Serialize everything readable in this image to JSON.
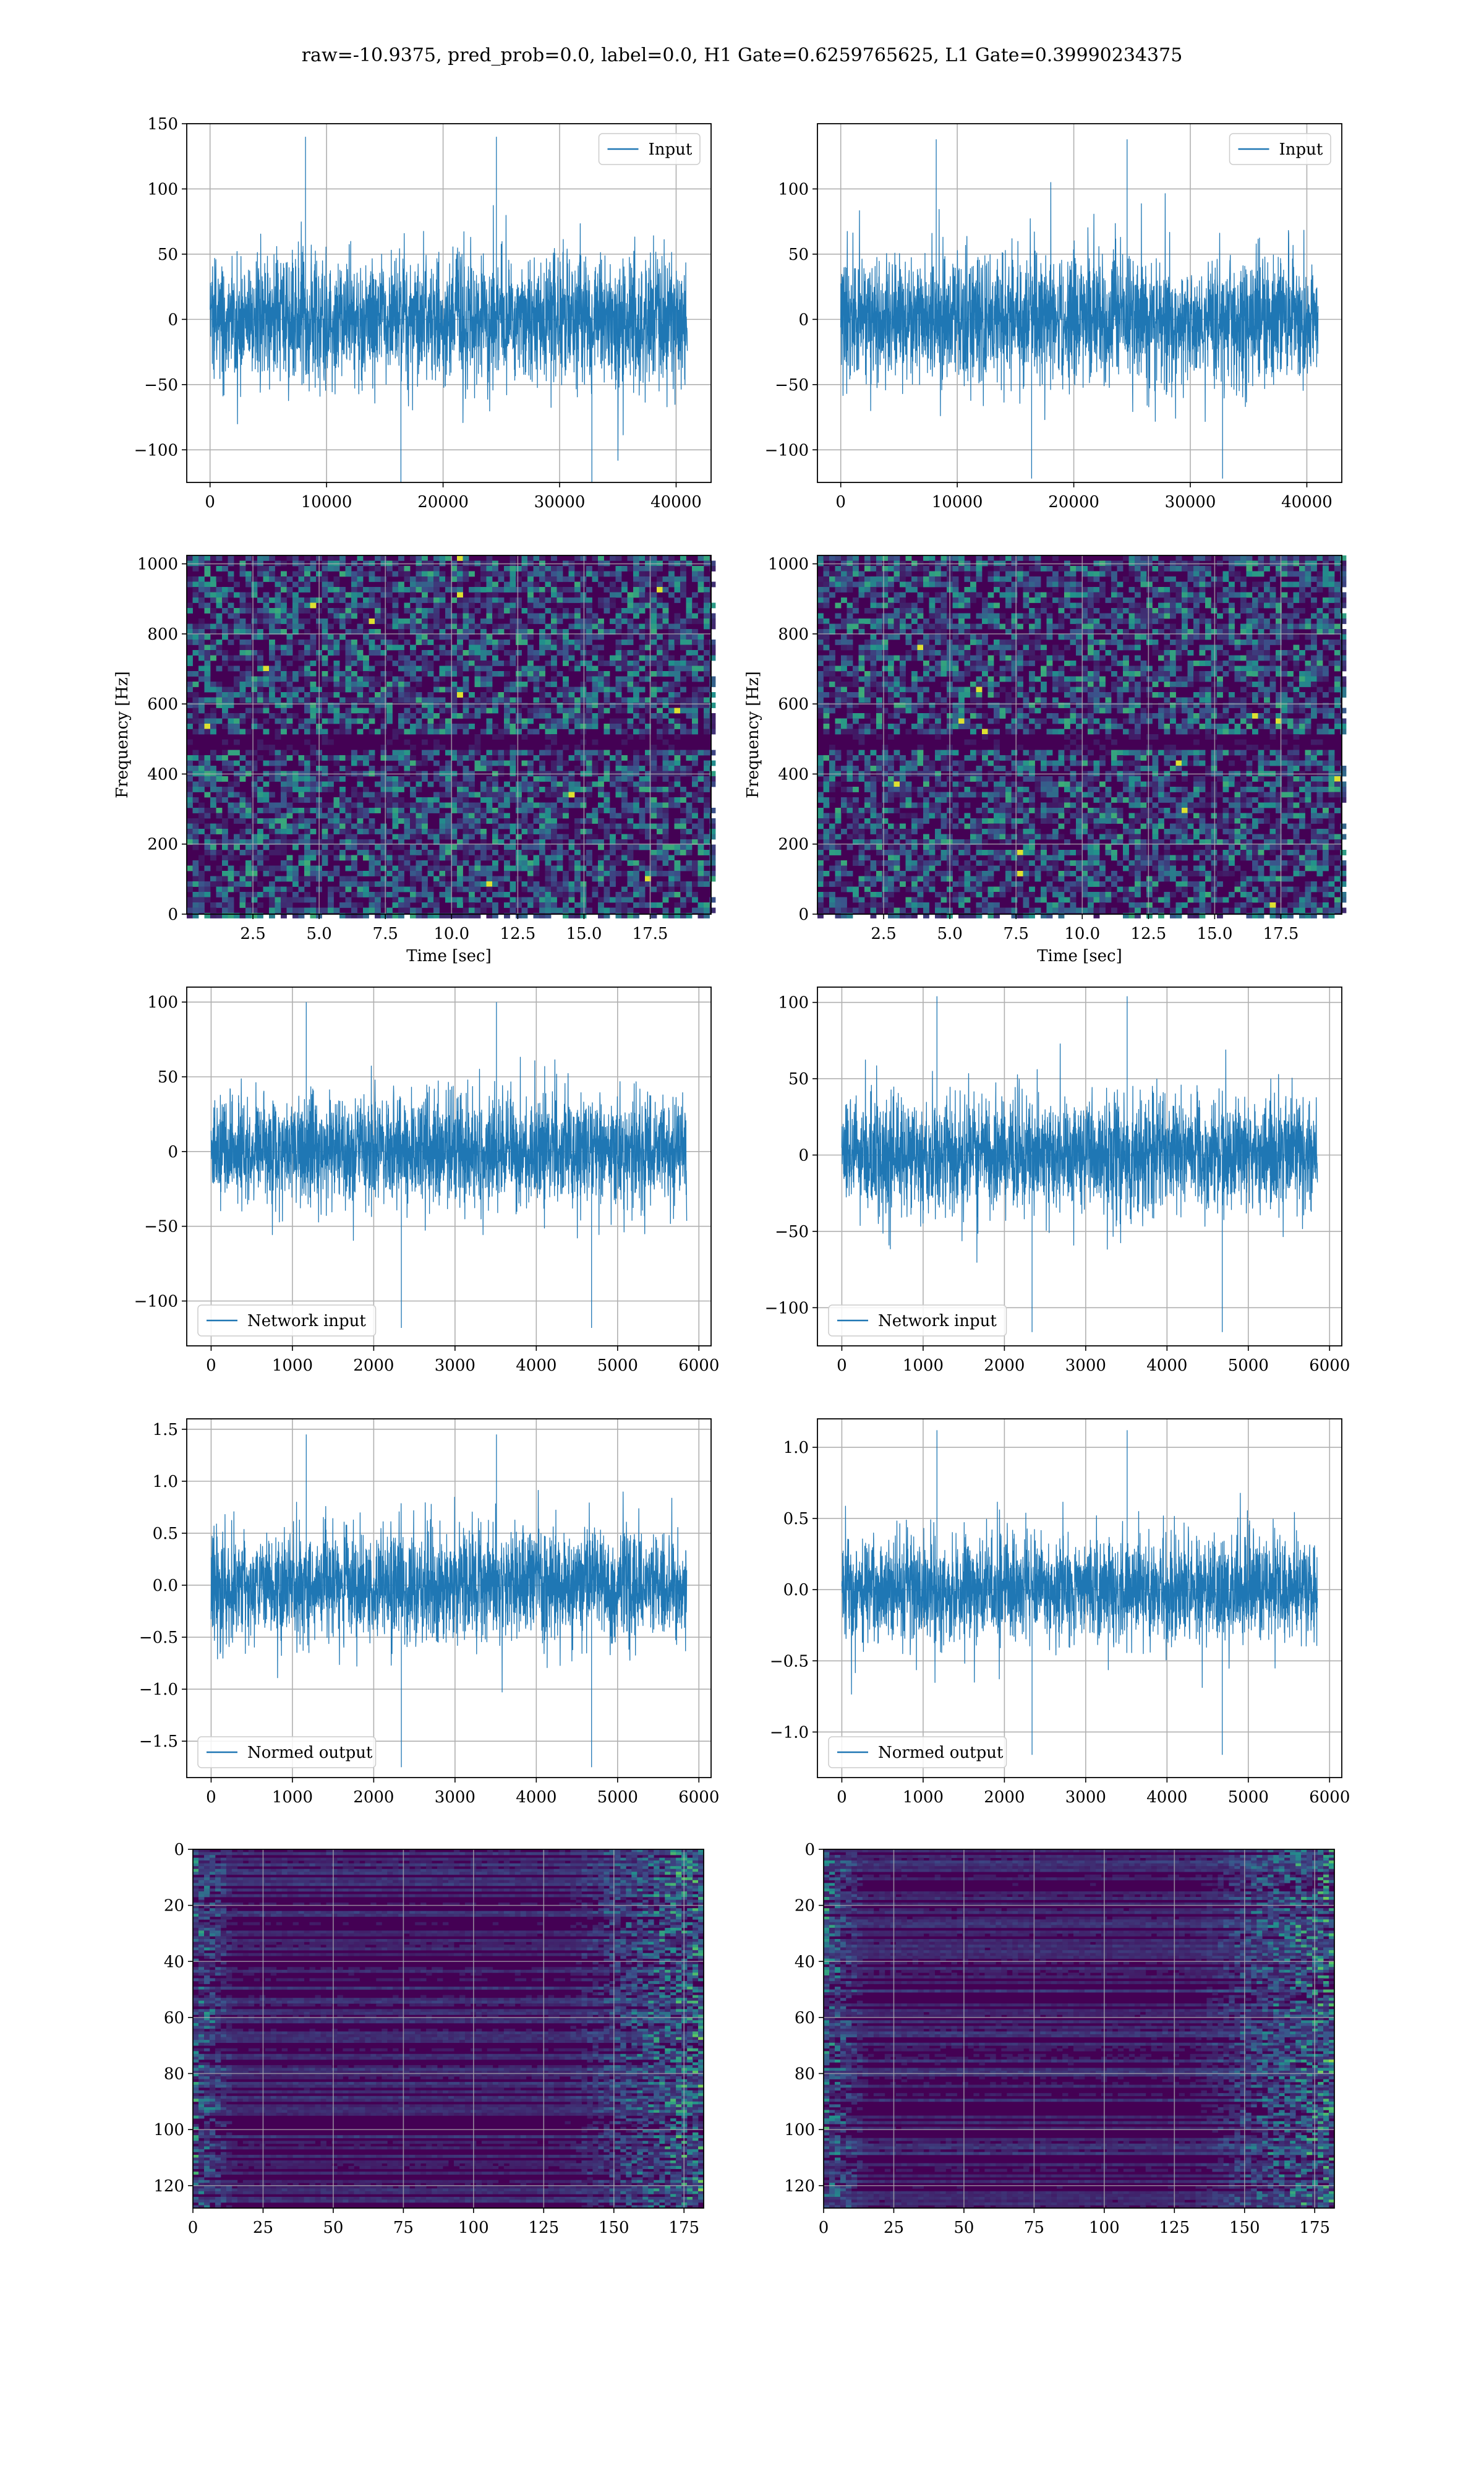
{
  "figure": {
    "title": "raw=-10.9375, pred_prob=0.0, label=0.0, H1 Gate=0.6259765625, L1 Gate=0.39990234375",
    "colors": {
      "line": "#1f77b4",
      "grid": "#b0b0b0",
      "heat_low": "#440154",
      "heat_mid": "#21918c",
      "heat_high": "#fde725"
    }
  },
  "chart_data": [
    {
      "id": "input-h1",
      "type": "line",
      "series": [
        {
          "name": "Input"
        }
      ],
      "xlim": [
        -2000,
        43000
      ],
      "ylim": [
        -125,
        150
      ],
      "xticks": [
        0,
        10000,
        20000,
        30000,
        40000
      ],
      "yticks": [
        -100,
        -50,
        0,
        50,
        100,
        150
      ],
      "x_extent": [
        0,
        40960
      ],
      "amplitude_typical": 45,
      "amplitude_max": 140,
      "amplitude_min": -125,
      "grid": true,
      "legend": "upper right",
      "xlabel": "",
      "ylabel": ""
    },
    {
      "id": "input-l1",
      "type": "line",
      "series": [
        {
          "name": "Input"
        }
      ],
      "xlim": [
        -2000,
        43000
      ],
      "ylim": [
        -125,
        150
      ],
      "xticks": [
        0,
        10000,
        20000,
        30000,
        40000
      ],
      "yticks": [
        -100,
        -50,
        0,
        50,
        100
      ],
      "x_extent": [
        0,
        40960
      ],
      "amplitude_typical": 45,
      "amplitude_max": 138,
      "amplitude_min": -122,
      "grid": true,
      "legend": "upper right",
      "xlabel": "",
      "ylabel": ""
    },
    {
      "id": "spectrogram-h1",
      "type": "heatmap",
      "xlim": [
        0,
        19.8
      ],
      "ylim": [
        0,
        1024
      ],
      "xticks": [
        2.5,
        5.0,
        7.5,
        10.0,
        12.5,
        15.0,
        17.5
      ],
      "yticks": [
        0,
        200,
        400,
        600,
        800,
        1000
      ],
      "xlabel": "Time [sec]",
      "ylabel": "Frequency [Hz]",
      "grid": true,
      "colormap": "viridis"
    },
    {
      "id": "spectrogram-l1",
      "type": "heatmap",
      "xlim": [
        0,
        19.8
      ],
      "ylim": [
        0,
        1024
      ],
      "xticks": [
        2.5,
        5.0,
        7.5,
        10.0,
        12.5,
        15.0,
        17.5
      ],
      "yticks": [
        0,
        200,
        400,
        600,
        800,
        1000
      ],
      "xlabel": "Time [sec]",
      "ylabel": "Frequency [Hz]",
      "grid": true,
      "colormap": "viridis"
    },
    {
      "id": "network-input-h1",
      "type": "line",
      "series": [
        {
          "name": "Network input"
        }
      ],
      "xlim": [
        -300,
        6150
      ],
      "ylim": [
        -130,
        110
      ],
      "xticks": [
        0,
        1000,
        2000,
        3000,
        4000,
        5000,
        6000
      ],
      "yticks": [
        -100,
        -50,
        0,
        50,
        100
      ],
      "x_extent": [
        0,
        5850
      ],
      "amplitude_typical": 35,
      "amplitude_max": 100,
      "amplitude_min": -118,
      "grid": true,
      "legend": "lower left",
      "xlabel": "",
      "ylabel": ""
    },
    {
      "id": "network-input-l1",
      "type": "line",
      "series": [
        {
          "name": "Network input"
        }
      ],
      "xlim": [
        -300,
        6150
      ],
      "ylim": [
        -125,
        110
      ],
      "xticks": [
        0,
        1000,
        2000,
        3000,
        4000,
        5000,
        6000
      ],
      "yticks": [
        -100,
        -50,
        0,
        50,
        100
      ],
      "x_extent": [
        0,
        5850
      ],
      "amplitude_typical": 35,
      "amplitude_max": 104,
      "amplitude_min": -116,
      "grid": true,
      "legend": "lower left",
      "xlabel": "",
      "ylabel": ""
    },
    {
      "id": "normed-output-h1",
      "type": "line",
      "series": [
        {
          "name": "Normed output"
        }
      ],
      "xlim": [
        -300,
        6150
      ],
      "ylim": [
        -1.85,
        1.6
      ],
      "xticks": [
        0,
        1000,
        2000,
        3000,
        4000,
        5000,
        6000
      ],
      "yticks": [
        -1.5,
        -1.0,
        -0.5,
        0.0,
        0.5,
        1.0,
        1.5
      ],
      "x_extent": [
        0,
        5850
      ],
      "amplitude_typical": 0.5,
      "amplitude_max": 1.45,
      "amplitude_min": -1.75,
      "grid": true,
      "legend": "lower left",
      "xlabel": "",
      "ylabel": ""
    },
    {
      "id": "normed-output-l1",
      "type": "line",
      "series": [
        {
          "name": "Normed output"
        }
      ],
      "xlim": [
        -300,
        6150
      ],
      "ylim": [
        -1.32,
        1.2
      ],
      "xticks": [
        0,
        1000,
        2000,
        3000,
        4000,
        5000,
        6000
      ],
      "yticks": [
        -1.0,
        -0.5,
        0.0,
        0.5,
        1.0
      ],
      "x_extent": [
        0,
        5850
      ],
      "amplitude_typical": 0.35,
      "amplitude_max": 1.12,
      "amplitude_min": -1.16,
      "grid": true,
      "legend": "lower left",
      "xlabel": "",
      "ylabel": ""
    },
    {
      "id": "feature-map-h1",
      "type": "heatmap",
      "xlim": [
        0,
        182
      ],
      "ylim": [
        128,
        0
      ],
      "xticks": [
        0,
        25,
        50,
        75,
        100,
        125,
        150,
        175
      ],
      "yticks": [
        0,
        20,
        40,
        60,
        80,
        100,
        120
      ],
      "xlabel": "",
      "ylabel": "",
      "grid": true,
      "colormap": "viridis"
    },
    {
      "id": "feature-map-l1",
      "type": "heatmap",
      "xlim": [
        0,
        182
      ],
      "ylim": [
        128,
        0
      ],
      "xticks": [
        0,
        25,
        50,
        75,
        100,
        125,
        150,
        175
      ],
      "yticks": [
        0,
        20,
        40,
        60,
        80,
        100,
        120
      ],
      "xlabel": "",
      "ylabel": "",
      "grid": true,
      "colormap": "viridis"
    }
  ]
}
